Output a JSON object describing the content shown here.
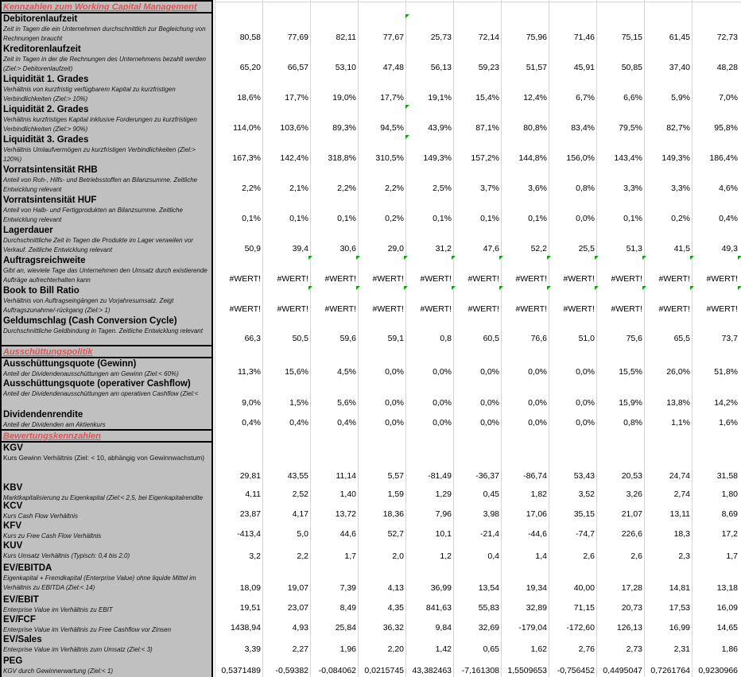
{
  "sections": [
    {
      "id": "wcm",
      "title": "Kennzahlen zum Working Capital Management",
      "rows": [
        {
          "title": "Debitorenlaufzeit",
          "desc": "Zeit in Tagen die ein Unternehmen durchschnittlich zur Begleichung von Rechnungen braucht",
          "values": [
            "80,58",
            "77,69",
            "82,11",
            "77,67",
            "25,73",
            "72,14",
            "75,96",
            "71,46",
            "75,15",
            "61,45",
            "72,73"
          ]
        },
        {
          "title": "Kreditorenlaufzeit",
          "desc": "Zeit in Tagen in der die Rechnungen des Unternehmens bezahlt werden (Ziel:> Debitorenlaufzeit)",
          "values": [
            "65,20",
            "66,57",
            "53,10",
            "47,48",
            "56,13",
            "59,23",
            "51,57",
            "45,91",
            "50,85",
            "37,40",
            "48,28"
          ]
        },
        {
          "title": "Liquidität 1. Grades",
          "desc": "Verhältnis von kurzfristig verfügbarem Kapital zu kurzfristigen Verbindlichkeiten (Ziel:> 10%)",
          "values": [
            "18,6%",
            "17,7%",
            "19,0%",
            "17,7%",
            "19,1%",
            "15,4%",
            "12,4%",
            "6,7%",
            "6,6%",
            "5,9%",
            "7,0%"
          ]
        },
        {
          "title": "Liquidität 2. Grades",
          "desc": "Verhältnis kurzfristiges Kapital inklusive Forderungen zu kurzfristigen Verbindlichkeiten (Ziel:> 90%)",
          "values": [
            "114,0%",
            "103,6%",
            "89,3%",
            "94,5%",
            "43,9%",
            "87,1%",
            "80,8%",
            "83,4%",
            "79,5%",
            "82,7%",
            "95,8%"
          ]
        },
        {
          "title": "Liquidität 3. Grades",
          "desc": "Verhältnis Umlaufvermögen zu kurzfristigen Verbindlichkeiten (Ziel:> 120%)",
          "values": [
            "167,3%",
            "142,4%",
            "318,8%",
            "310,5%",
            "149,3%",
            "157,2%",
            "144,8%",
            "156,0%",
            "143,4%",
            "149,3%",
            "186,4%"
          ]
        },
        {
          "title": "Vorratsintensität RHB",
          "desc": "Anteil von Roh-, Hilfs- und Betriebsstoffen an Bilanzsumme. Zeitliche Entwicklung relevant",
          "values": [
            "2,2%",
            "2,1%",
            "2,2%",
            "2,2%",
            "2,5%",
            "3,7%",
            "3,6%",
            "0,8%",
            "3,3%",
            "3,3%",
            "4,6%"
          ]
        },
        {
          "title": "Vorratsintensität HUF",
          "desc": "Anteil von Halb- und Fertigprodukten an Bilanzsumme. Zeitliche Entwicklung relevant",
          "values": [
            "0,1%",
            "0,1%",
            "0,1%",
            "0,2%",
            "0,1%",
            "0,1%",
            "0,1%",
            "0,0%",
            "0,1%",
            "0,2%",
            "0,4%"
          ]
        },
        {
          "title": "Lagerdauer",
          "desc": "Durchschnittliche Zeit in Tagen die Produkte im Lager verweilen vor Verkauf. Zeitliche Entwicklung relevant",
          "values": [
            "50,9",
            "39,4",
            "30,6",
            "29,0",
            "31,2",
            "47,6",
            "52,2",
            "25,5",
            "51,3",
            "41,5",
            "49,3"
          ]
        },
        {
          "title": "Auftragsreichweite",
          "desc": "Gibt an, wieviele Tage das Unternehmen den Umsatz durch existierende Aufträge aufrechterhalten kann",
          "values": [
            "#WERT!",
            "#WERT!",
            "#WERT!",
            "#WERT!",
            "#WERT!",
            "#WERT!",
            "#WERT!",
            "#WERT!",
            "#WERT!",
            "#WERT!",
            "#WERT!"
          ]
        },
        {
          "title": "Book to Bill Ratio",
          "desc": "Verhältnis von Auftragseingängen zu Vorjahresumsatz. Zeigt Auftragszunahme/-rückgang (Ziel:> 1)",
          "values": [
            "#WERT!",
            "#WERT!",
            "#WERT!",
            "#WERT!",
            "#WERT!",
            "#WERT!",
            "#WERT!",
            "#WERT!",
            "#WERT!",
            "#WERT!",
            "#WERT!"
          ]
        },
        {
          "title": "Geldumschlag (Cash Conversion Cycle)",
          "desc": "Durchschnittliche Geldbindung in Tagen. Zeitliche Entwicklung relevant",
          "values": [
            "66,3",
            "50,5",
            "59,6",
            "59,1",
            "0,8",
            "60,5",
            "76,6",
            "51,0",
            "75,6",
            "65,5",
            "73,7"
          ]
        }
      ]
    },
    {
      "id": "aus",
      "title": "Ausschüttungspolitik",
      "rows": [
        {
          "title": "Ausschüttungsquote (Gewinn)",
          "desc": "Anteil der Dividendenausschüttungen am Gewinn (Ziel:< 60%)",
          "values": [
            "11,3%",
            "15,6%",
            "4,5%",
            "0,0%",
            "0,0%",
            "0,0%",
            "0,0%",
            "0,0%",
            "15,5%",
            "26,0%",
            "51,8%"
          ]
        },
        {
          "title": "Ausschüttungsquote (operativer Cashflow)",
          "desc": "Anteil der Dividendenausschüttungen am operativen Cashflow (Ziel:<",
          "values": [
            "9,0%",
            "1,5%",
            "5,6%",
            "0,0%",
            "0,0%",
            "0,0%",
            "0,0%",
            "0,0%",
            "15,9%",
            "13,8%",
            "14,2%"
          ]
        },
        {
          "title": "Dividendenrendite",
          "desc": "Anteil der Dividenden am Aktienkurs",
          "values": [
            "0,4%",
            "0,4%",
            "0,4%",
            "0,0%",
            "0,0%",
            "0,0%",
            "0,0%",
            "0,0%",
            "0,8%",
            "1,1%",
            "1,6%"
          ]
        }
      ]
    },
    {
      "id": "bew",
      "title": "Bewertungskennzahlen",
      "rows": [
        {
          "title": "KGV",
          "desc": "Kurs Gewinn Verhältnis (Ziel: < 10, abhängig von Gewinnwachstum)",
          "values": [
            "29,81",
            "43,55",
            "11,14",
            "5,57",
            "-81,49",
            "-36,37",
            "-86,74",
            "53,43",
            "20,53",
            "24,74",
            "31,58"
          ]
        },
        {
          "title": "KBV",
          "desc": "Marktkapitalisierung zu Eigenkapital (Ziel:< 2,5, bei Eigenkapitalrendite von 15%)",
          "values": [
            "4,11",
            "2,52",
            "1,40",
            "1,59",
            "1,29",
            "0,45",
            "1,82",
            "3,52",
            "3,26",
            "2,74",
            "1,80"
          ]
        },
        {
          "title": "KCV",
          "desc": "Kurs Cash Flow Verhältnis",
          "values": [
            "23,87",
            "4,17",
            "13,72",
            "18,36",
            "7,96",
            "3,98",
            "17,06",
            "35,15",
            "21,07",
            "13,11",
            "8,69"
          ]
        },
        {
          "title": "KFV",
          "desc": "Kurs zu Free Cash Flow Verhältnis",
          "values": [
            "-413,4",
            "5,0",
            "44,6",
            "52,7",
            "10,1",
            "-21,4",
            "-44,6",
            "-74,7",
            "226,6",
            "18,3",
            "17,2"
          ]
        },
        {
          "title": "KUV",
          "desc": "Kurs Umsatz Verhältnis (Typisch: 0,4 bis 2,0)",
          "values": [
            "3,2",
            "2,2",
            "1,7",
            "2,0",
            "1,2",
            "0,4",
            "1,4",
            "2,6",
            "2,6",
            "2,3",
            "1,7"
          ]
        },
        {
          "title": "EV/EBITDA",
          "desc": "Eigenkapital + Fremdkapital (Enterprise Value) ohne liquide Mittel im Verhältnis zu EBITDA (Ziel:< 14)",
          "values": [
            "18,09",
            "19,07",
            "7,39",
            "4,13",
            "36,99",
            "13,54",
            "19,34",
            "40,00",
            "17,28",
            "14,81",
            "13,18"
          ]
        },
        {
          "title": "EV/EBIT",
          "desc": "Enterprise Value im Verhältnis zu EBIT",
          "values": [
            "19,51",
            "23,07",
            "8,49",
            "4,35",
            "841,63",
            "55,83",
            "32,89",
            "71,15",
            "20,73",
            "17,53",
            "16,09"
          ]
        },
        {
          "title": "EV/FCF",
          "desc": "Enterprise Value im Verhältnis zu Free Cashflow vor Zinsen",
          "values": [
            "1438,94",
            "4,93",
            "25,84",
            "36,32",
            "9,84",
            "32,69",
            "-179,04",
            "-172,60",
            "126,13",
            "16,99",
            "14,65"
          ]
        },
        {
          "title": "EV/Sales",
          "desc": "Enterprise Value im Verhältnis zum Umsatz (Ziel:< 3)",
          "values": [
            "3,39",
            "2,27",
            "1,96",
            "2,20",
            "1,42",
            "0,65",
            "1,62",
            "2,76",
            "2,73",
            "2,31",
            "1,86"
          ]
        },
        {
          "title": "PEG",
          "desc": "KGV durch Gewinnerwartung (Ziel:< 1)",
          "values": [
            "0,5371489",
            "-0,59382",
            "-0,084062",
            "0,0215745",
            "43,382463",
            "-7,161308",
            "1,5509653",
            "-0,756452",
            "0,4495047",
            "0,7261764",
            "0,9230966"
          ]
        }
      ]
    }
  ],
  "colors": {
    "section_title": "#dc5454",
    "label_bg": "#c0c0c0",
    "comment_marker": "#169e16",
    "grid": "#d4d4d4"
  }
}
